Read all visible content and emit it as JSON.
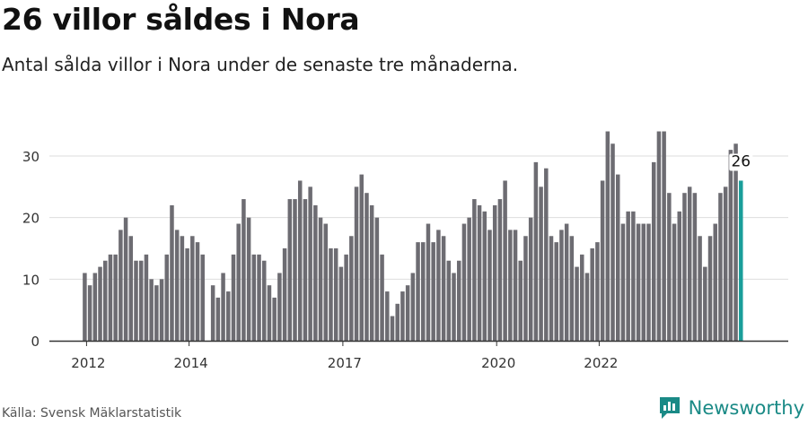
{
  "title": "26 villor såldes i Nora",
  "subtitle": "Antal sålda villor i Nora under de senaste tre månaderna.",
  "source": "Källa: Svensk Mäklarstatistik",
  "brand": {
    "name": "Newsworthy",
    "icon": "newsworthy-logo-icon"
  },
  "colors": {
    "bar": "#6d6c72",
    "highlight": "#1a9e9a",
    "grid": "#dddddd",
    "axis": "#333333",
    "text": "#333333",
    "brand": "#1a8a86"
  },
  "chart_data": {
    "type": "bar",
    "title": "26 villor såldes i Nora",
    "xlabel": "",
    "ylabel": "",
    "ylim": [
      0,
      35
    ],
    "yticks": [
      0,
      10,
      20,
      30
    ],
    "x_start": "2012-01",
    "interval": "month",
    "xticks": [
      {
        "label": "2012",
        "index": 0
      },
      {
        "label": "2014",
        "index": 20
      },
      {
        "label": "2017",
        "index": 50
      },
      {
        "label": "2020",
        "index": 80
      },
      {
        "label": "2022",
        "index": 100
      }
    ],
    "values": [
      11,
      9,
      11,
      12,
      13,
      14,
      14,
      18,
      20,
      17,
      13,
      13,
      14,
      10,
      9,
      10,
      14,
      22,
      18,
      17,
      15,
      17,
      16,
      14,
      0,
      9,
      7,
      11,
      8,
      14,
      19,
      23,
      20,
      14,
      14,
      13,
      9,
      7,
      11,
      15,
      23,
      23,
      26,
      23,
      25,
      22,
      20,
      19,
      15,
      15,
      12,
      14,
      17,
      25,
      27,
      24,
      22,
      20,
      14,
      8,
      4,
      6,
      8,
      9,
      11,
      16,
      16,
      19,
      16,
      18,
      17,
      13,
      11,
      13,
      19,
      20,
      23,
      22,
      21,
      18,
      22,
      23,
      26,
      18,
      18,
      13,
      17,
      20,
      29,
      25,
      28,
      17,
      16,
      18,
      19,
      17,
      12,
      14,
      11,
      15,
      16,
      26,
      34,
      32,
      27,
      19,
      21,
      21,
      19,
      19,
      19,
      29,
      34,
      34,
      24,
      19,
      21,
      24,
      25,
      24,
      17,
      12,
      17,
      19,
      24,
      25,
      31,
      32,
      26
    ],
    "highlight_index": 128,
    "highlight_label": "26"
  }
}
